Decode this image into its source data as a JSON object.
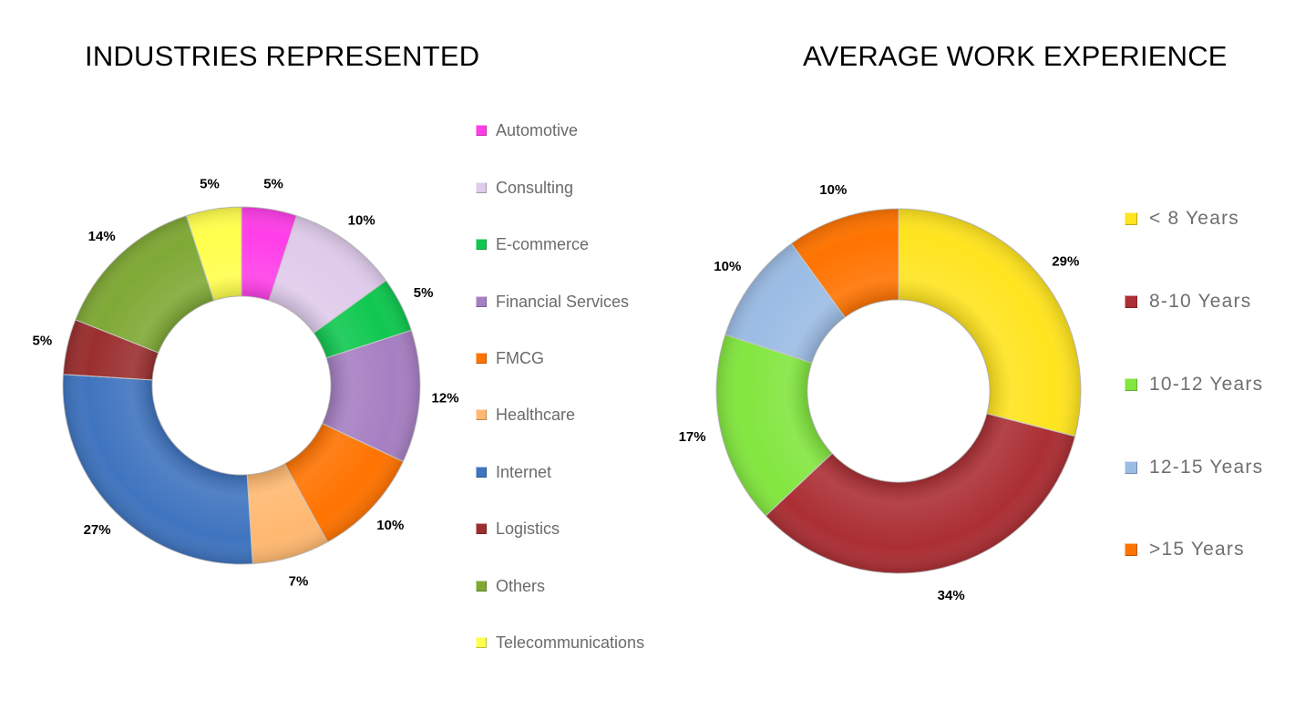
{
  "chart_data": [
    {
      "type": "pie",
      "variant": "donut",
      "title": "INDUSTRIES REPRESENTED",
      "legend_position": "right",
      "categories": [
        "Automotive",
        "Consulting",
        "E-commerce",
        "Financial Services",
        "FMCG",
        "Healthcare",
        "Internet",
        "Logistics",
        "Others",
        "Telecommunications"
      ],
      "values": [
        5,
        10,
        5,
        12,
        10,
        7,
        27,
        5,
        14,
        5
      ],
      "labels": [
        "5%",
        "10%",
        "5%",
        "12%",
        "10%",
        "7%",
        "27%",
        "5%",
        "14%",
        "5%"
      ],
      "colors": [
        "#ff3ee8",
        "#dfcbeb",
        "#10c850",
        "#a67fc2",
        "#ff7300",
        "#ffb870",
        "#3f74bf",
        "#9b2f2f",
        "#7fa935",
        "#ffff4d"
      ]
    },
    {
      "type": "pie",
      "variant": "donut",
      "title": "AVERAGE WORK EXPERIENCE",
      "legend_position": "right",
      "categories": [
        "< 8 Years",
        "8-10 Years",
        "10-12 Years",
        "12-15 Years",
        ">15 Years"
      ],
      "values": [
        29,
        34,
        17,
        10,
        10
      ],
      "labels": [
        "29%",
        "34%",
        "17%",
        "10%",
        "10%"
      ],
      "colors": [
        "#ffe41f",
        "#ab2f34",
        "#82e63f",
        "#9bbce4",
        "#ff7300"
      ]
    }
  ]
}
